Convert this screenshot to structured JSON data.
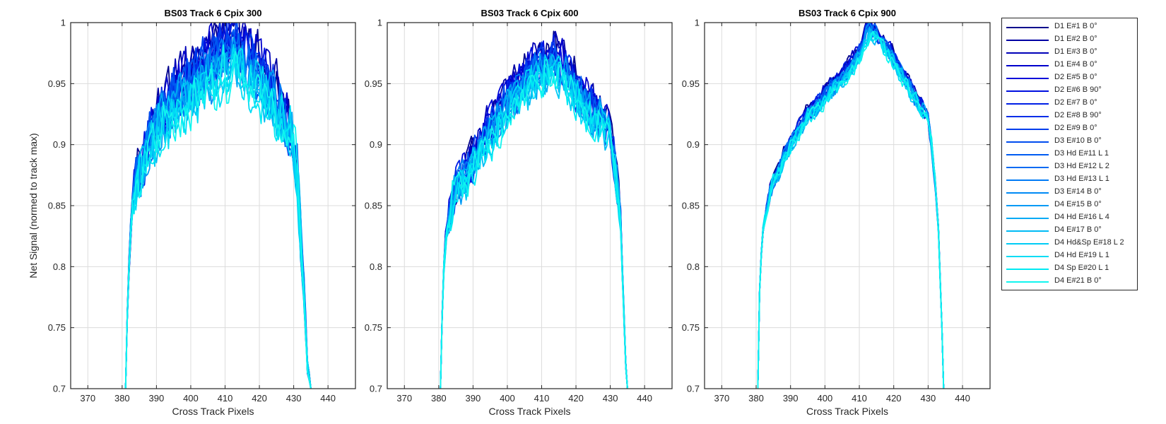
{
  "chart_data": [
    {
      "type": "line",
      "title": "BS03 Track 6  Cpix 300",
      "xlabel": "Cross Track Pixels",
      "ylabel": "Net Signal (normed to track max)",
      "xlim": [
        365,
        448
      ],
      "ylim": [
        0.7,
        1.0
      ],
      "xticks": [
        "370",
        "380",
        "390",
        "400",
        "410",
        "420",
        "430",
        "440"
      ],
      "yticks": [
        "0.7",
        "0.75",
        "0.8",
        "0.85",
        "0.9",
        "0.95",
        "1"
      ],
      "grid": true,
      "profile": {
        "x": [
          381,
          381.5,
          382,
          382.5,
          383,
          384,
          385,
          386,
          387,
          388,
          389,
          390,
          391,
          392,
          393,
          394,
          395,
          396,
          397,
          398,
          399,
          400,
          401,
          402,
          403,
          404,
          405,
          406,
          407,
          408,
          409,
          410,
          411,
          412,
          413,
          414,
          415,
          416,
          417,
          418,
          419,
          420,
          421,
          422,
          423,
          424,
          425,
          426,
          427,
          428,
          429,
          430,
          431,
          431.5,
          432,
          432.5,
          433,
          433.5,
          434,
          434.5,
          435
        ],
        "y": [
          0.7,
          0.76,
          0.8,
          0.83,
          0.85,
          0.87,
          0.875,
          0.88,
          0.89,
          0.9,
          0.9,
          0.91,
          0.915,
          0.92,
          0.922,
          0.925,
          0.93,
          0.932,
          0.935,
          0.937,
          0.94,
          0.942,
          0.945,
          0.947,
          0.95,
          0.952,
          0.955,
          0.957,
          0.96,
          0.962,
          0.965,
          0.967,
          0.968,
          0.968,
          0.967,
          0.965,
          0.963,
          0.96,
          0.958,
          0.955,
          0.952,
          0.95,
          0.945,
          0.942,
          0.94,
          0.935,
          0.93,
          0.925,
          0.92,
          0.915,
          0.91,
          0.9,
          0.88,
          0.85,
          0.82,
          0.8,
          0.78,
          0.75,
          0.72,
          0.71,
          0.7
        ]
      },
      "series_spread": 0.045,
      "noise_amplitude": 0.028
    },
    {
      "type": "line",
      "title": "BS03 Track 6  Cpix 600",
      "xlabel": "Cross Track Pixels",
      "ylabel": "",
      "xlim": [
        365,
        448
      ],
      "ylim": [
        0.7,
        1.0
      ],
      "xticks": [
        "370",
        "380",
        "390",
        "400",
        "410",
        "420",
        "430",
        "440"
      ],
      "yticks": [
        "0.7",
        "0.75",
        "0.8",
        "0.85",
        "0.9",
        "0.95",
        "1"
      ],
      "grid": true,
      "profile": {
        "x": [
          380.5,
          381,
          381.5,
          382,
          383,
          384,
          385,
          386,
          387,
          388,
          389,
          390,
          391,
          392,
          393,
          394,
          395,
          396,
          397,
          398,
          399,
          400,
          401,
          402,
          403,
          404,
          405,
          406,
          407,
          408,
          409,
          410,
          411,
          412,
          413,
          414,
          415,
          416,
          417,
          418,
          419,
          420,
          421,
          422,
          423,
          424,
          425,
          426,
          427,
          428,
          429,
          430,
          431,
          432,
          433,
          433.5,
          434,
          434.5,
          435
        ],
        "y": [
          0.7,
          0.76,
          0.8,
          0.82,
          0.84,
          0.855,
          0.865,
          0.87,
          0.875,
          0.88,
          0.885,
          0.89,
          0.895,
          0.9,
          0.905,
          0.91,
          0.915,
          0.92,
          0.925,
          0.93,
          0.935,
          0.94,
          0.945,
          0.948,
          0.952,
          0.955,
          0.958,
          0.96,
          0.963,
          0.966,
          0.968,
          0.97,
          0.972,
          0.975,
          0.975,
          0.972,
          0.97,
          0.968,
          0.963,
          0.958,
          0.953,
          0.948,
          0.943,
          0.94,
          0.937,
          0.933,
          0.93,
          0.927,
          0.925,
          0.92,
          0.915,
          0.905,
          0.89,
          0.87,
          0.84,
          0.8,
          0.76,
          0.72,
          0.7
        ]
      },
      "series_spread": 0.03,
      "noise_amplitude": 0.02
    },
    {
      "type": "line",
      "title": "BS03 Track 6  Cpix 900",
      "xlabel": "Cross Track Pixels",
      "ylabel": "",
      "xlim": [
        365,
        448
      ],
      "ylim": [
        0.7,
        1.0
      ],
      "xticks": [
        "370",
        "380",
        "390",
        "400",
        "410",
        "420",
        "430",
        "440"
      ],
      "yticks": [
        "0.7",
        "0.75",
        "0.8",
        "0.85",
        "0.9",
        "0.95",
        "1"
      ],
      "grid": true,
      "profile": {
        "x": [
          380.5,
          381,
          381.5,
          382,
          383,
          384,
          385,
          386,
          387,
          388,
          389,
          390,
          391,
          392,
          393,
          394,
          395,
          396,
          397,
          398,
          399,
          400,
          401,
          402,
          403,
          404,
          405,
          406,
          407,
          408,
          409,
          410,
          411,
          412,
          413,
          414,
          415,
          416,
          417,
          418,
          419,
          420,
          421,
          422,
          423,
          424,
          425,
          426,
          427,
          428,
          429,
          430,
          431,
          432,
          433,
          433.5,
          434,
          434.5
        ],
        "y": [
          0.7,
          0.78,
          0.81,
          0.83,
          0.845,
          0.86,
          0.87,
          0.875,
          0.88,
          0.89,
          0.895,
          0.9,
          0.905,
          0.91,
          0.915,
          0.92,
          0.925,
          0.928,
          0.93,
          0.933,
          0.935,
          0.94,
          0.943,
          0.947,
          0.95,
          0.953,
          0.955,
          0.958,
          0.96,
          0.965,
          0.97,
          0.975,
          0.98,
          0.99,
          0.995,
          0.993,
          0.99,
          0.985,
          0.982,
          0.978,
          0.975,
          0.97,
          0.965,
          0.96,
          0.955,
          0.95,
          0.945,
          0.94,
          0.935,
          0.93,
          0.925,
          0.92,
          0.9,
          0.87,
          0.83,
          0.79,
          0.75,
          0.7
        ]
      },
      "series_spread": 0.012,
      "noise_amplitude": 0.008
    }
  ],
  "legend": {
    "placement": "outside-right",
    "entries": [
      {
        "label": "D1 E#1 B 0°",
        "color": "#00008c"
      },
      {
        "label": "D1 E#2 B 0°",
        "color": "#0000a3"
      },
      {
        "label": "D1 E#3 B 0°",
        "color": "#0000b8"
      },
      {
        "label": "D1 E#4 B 0°",
        "color": "#0000cc"
      },
      {
        "label": "D2 E#5 B 0°",
        "color": "#0005d9"
      },
      {
        "label": "D2 E#6 B 90°",
        "color": "#0010e0"
      },
      {
        "label": "D2 E#7 B 0°",
        "color": "#001fe6"
      },
      {
        "label": "D2 E#8 B 90°",
        "color": "#002ee8"
      },
      {
        "label": "D2 E#9 B 0°",
        "color": "#003dec"
      },
      {
        "label": "D3 E#10 B 0°",
        "color": "#004cef"
      },
      {
        "label": "D3 Hd E#11 L 1",
        "color": "#005bf2"
      },
      {
        "label": "D3 Hd E#12 L 2",
        "color": "#006af3"
      },
      {
        "label": "D3 Hd E#13 L 1",
        "color": "#007af5"
      },
      {
        "label": "D3 E#14 B 0°",
        "color": "#008af5"
      },
      {
        "label": "D4 E#15 B 0°",
        "color": "#009af5"
      },
      {
        "label": "D4 Hd E#16 L 4",
        "color": "#00aaf5"
      },
      {
        "label": "D4 E#17 B 0°",
        "color": "#00bbf5"
      },
      {
        "label": "D4 Hd&Sp E#18 L 2",
        "color": "#00ccf5"
      },
      {
        "label": "D4 Hd E#19 L 1",
        "color": "#00dcf5"
      },
      {
        "label": "D4 Sp E#20 L 1",
        "color": "#00eaf3"
      },
      {
        "label": "D4 E#21 B 0°",
        "color": "#11f5ef"
      }
    ]
  },
  "colors": {
    "axis": "#262626",
    "grid": "#dcdcdc",
    "background": "#ffffff"
  }
}
